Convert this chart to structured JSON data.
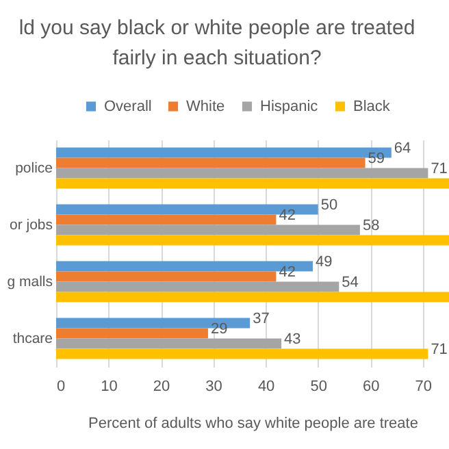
{
  "chart_data": {
    "type": "bar",
    "orientation": "horizontal",
    "title": [
      "ld you say black or white people are treated",
      "fairly in each situation?"
    ],
    "xlabel": "Percent of adults who say white people are treate",
    "categories": [
      "police",
      "or jobs",
      "g malls",
      "thcare"
    ],
    "series": [
      {
        "name": "Overall",
        "color": "#5b9bd5",
        "values": [
          64,
          50,
          49,
          37
        ]
      },
      {
        "name": "White",
        "color": "#ed7d31",
        "values": [
          59,
          42,
          42,
          29
        ]
      },
      {
        "name": "Hispanic",
        "color": "#a5a5a5",
        "values": [
          71,
          58,
          54,
          43
        ]
      },
      {
        "name": "Black",
        "color": "#ffc000",
        "values": [
          75,
          75,
          75,
          71
        ],
        "value_labels": [
          null,
          null,
          null,
          "71"
        ]
      }
    ],
    "xlim": [
      0,
      75
    ],
    "xticks": [
      0,
      10,
      20,
      30,
      40,
      50,
      60,
      70
    ],
    "grid": "x",
    "legend": "top",
    "data_labels": true
  }
}
